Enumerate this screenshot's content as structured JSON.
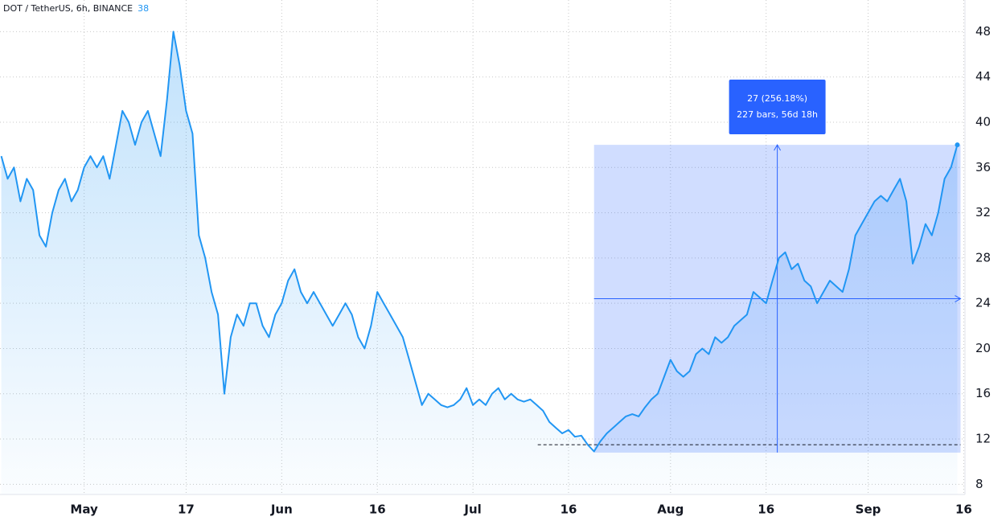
{
  "chart_data": {
    "type": "area",
    "title": "DOT / TetherUS, 6h, BINANCE",
    "last_value_label": "38",
    "color": "#2196f3",
    "values": [
      37,
      35,
      36,
      33,
      35,
      34,
      30,
      29,
      32,
      34,
      35,
      33,
      34,
      36,
      37,
      36,
      37,
      35,
      38,
      41,
      40,
      38,
      40,
      41,
      39,
      37,
      42,
      48,
      45,
      41,
      39,
      30,
      28,
      25,
      23,
      16,
      21,
      23,
      22,
      24,
      24,
      22,
      21,
      23,
      24,
      26,
      27,
      25,
      24,
      25,
      24,
      23,
      22,
      23,
      24,
      23,
      21,
      20,
      22,
      25,
      24,
      23,
      22,
      21,
      19,
      17,
      15,
      16,
      15.5,
      15,
      14.8,
      15,
      15.5,
      16.5,
      15,
      15.5,
      15,
      16,
      16.5,
      15.5,
      16,
      15.5,
      15.3,
      15.5,
      15,
      14.5,
      13.5,
      13,
      12.5,
      12.8,
      12.2,
      12.3,
      11.5,
      10.9,
      11.8,
      12.5,
      13,
      13.5,
      14,
      14.2,
      14,
      14.8,
      15.5,
      16,
      17.5,
      19,
      18,
      17.5,
      18,
      19.5,
      20,
      19.5,
      21,
      20.5,
      21,
      22,
      22.5,
      23,
      25,
      24.5,
      24,
      26,
      28,
      28.5,
      27,
      27.5,
      26,
      25.5,
      24,
      25,
      26,
      25.5,
      25,
      27,
      30,
      31,
      32,
      33,
      33.5,
      33,
      34,
      35,
      33,
      27.5,
      29,
      31,
      30,
      32,
      35,
      36,
      38
    ],
    "xlim": [
      -0.2,
      151.2
    ],
    "xticks": [
      {
        "value": 13,
        "label": "May"
      },
      {
        "value": 29,
        "label": "17"
      },
      {
        "value": 44,
        "label": "Jun"
      },
      {
        "value": 59,
        "label": "16"
      },
      {
        "value": 74,
        "label": "Jul"
      },
      {
        "value": 89,
        "label": "16"
      },
      {
        "value": 105,
        "label": "Aug"
      },
      {
        "value": 120,
        "label": "16"
      },
      {
        "value": 136,
        "label": "Sep"
      },
      {
        "value": 151,
        "label": "16"
      }
    ],
    "ylim": [
      7.1,
      50.8
    ],
    "yticks": [
      8,
      12,
      16,
      20,
      24,
      28,
      32,
      36,
      40,
      44,
      48
    ],
    "grid": true,
    "measure": {
      "from": 93,
      "to": 150,
      "low": 10.8,
      "high": 38,
      "baseline": 11.5,
      "label": "27 (256.18%)",
      "sublabel": "227 bars, 56d 18h"
    }
  }
}
